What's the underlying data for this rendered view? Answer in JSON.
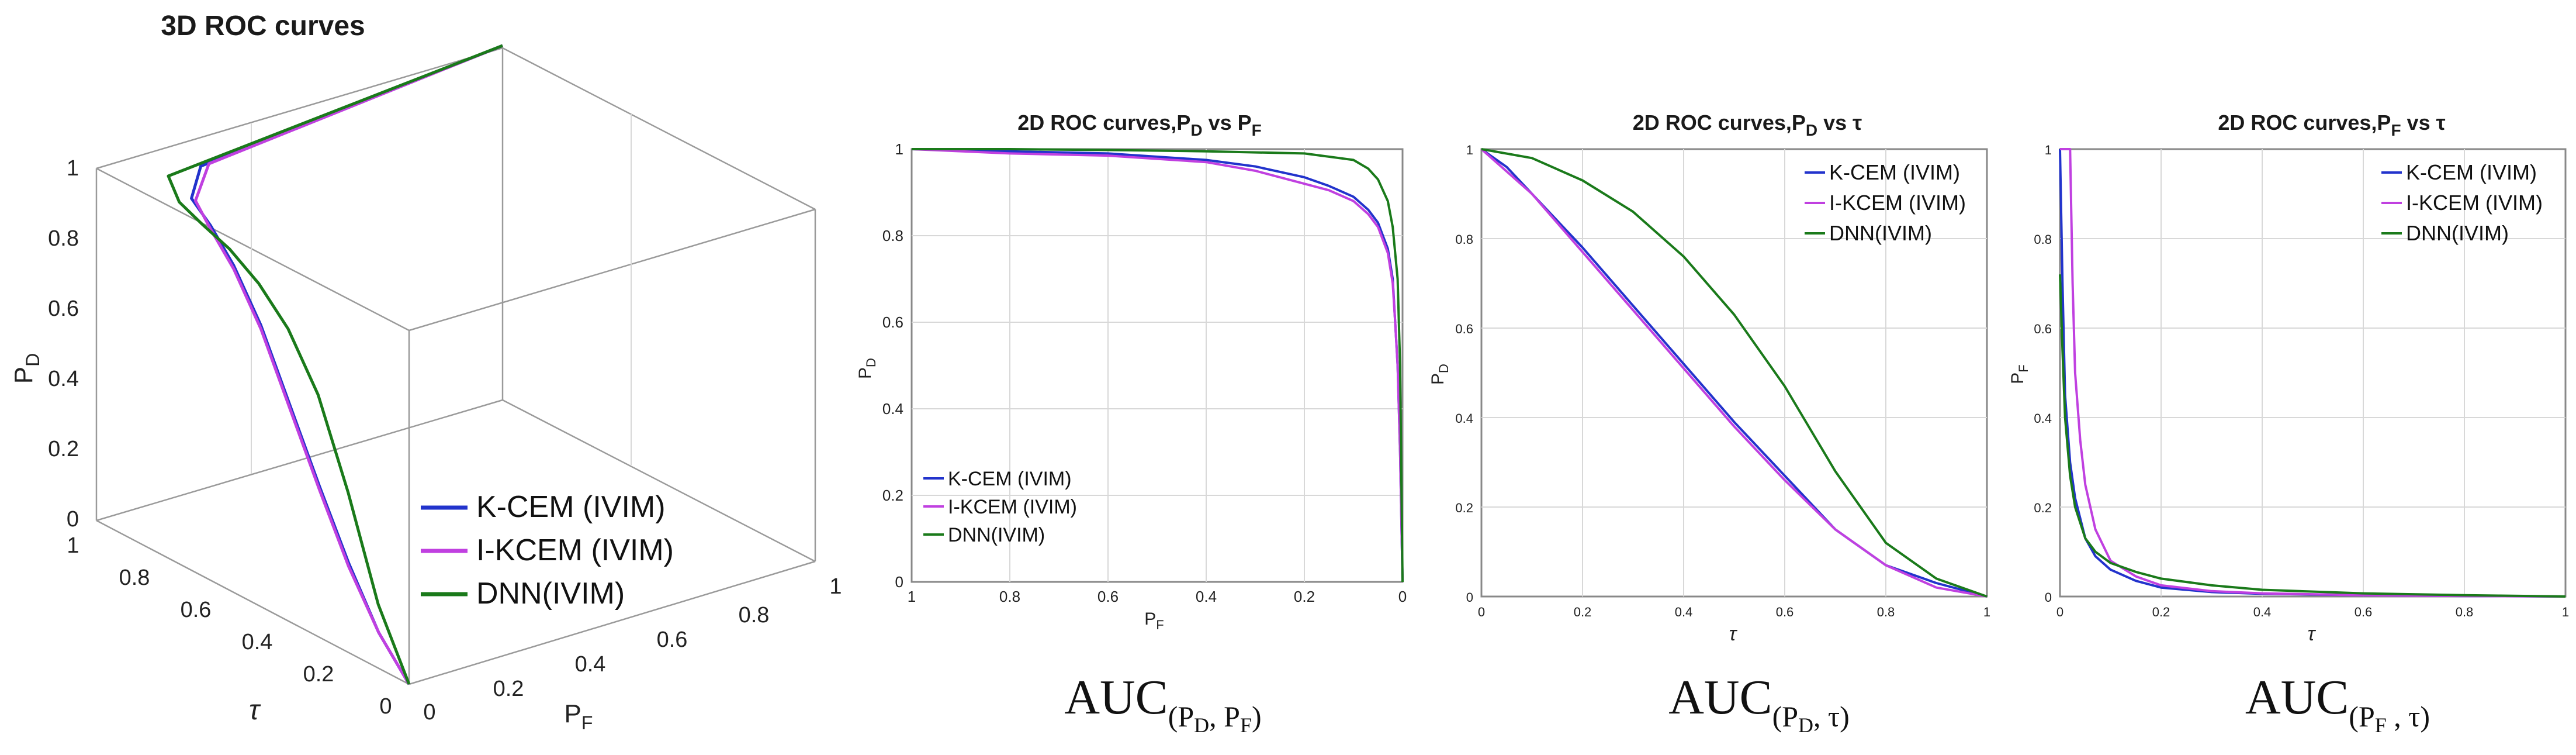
{
  "colors": {
    "kcem": "#2233cc",
    "ikcem": "#c040e0",
    "dnn": "#1a7a1a"
  },
  "series_names": [
    "K-CEM (IVIM)",
    "I-KCEM (IVIM)",
    "DNN(IVIM)"
  ],
  "auc_labels": [
    {
      "main": "AUC",
      "sub": "(P",
      "sub1": "D",
      "mid": ", P",
      "sub2": "F",
      "end": ")"
    },
    {
      "main": "AUC",
      "sub": "(P",
      "sub1": "D",
      "mid": ", τ",
      "sub2": "",
      "end": ")"
    },
    {
      "main": "AUC",
      "sub": "(P",
      "sub1": "F",
      "mid": " , τ",
      "sub2": "",
      "end": ")"
    }
  ],
  "chart_data": [
    {
      "type": "line",
      "title": "3D ROC curves",
      "zlabel": "P",
      "zlabel_sub": "D",
      "xlabel": "P",
      "xlabel_sub": "F",
      "ylabel": "τ",
      "zlim": [
        0,
        1
      ],
      "xlim": [
        0,
        1
      ],
      "ylim": [
        0,
        1
      ],
      "z_ticks": [
        "0",
        "0.2",
        "0.4",
        "0.6",
        "0.8",
        "1"
      ],
      "x_ticks": [
        "0",
        "0.2",
        "0.4",
        "0.6",
        "0.8",
        "1"
      ],
      "y_ticks": [
        "0",
        "0.2",
        "0.4",
        "0.6",
        "0.8",
        "1"
      ],
      "legend": "lower-right",
      "series": [
        {
          "name": "K-CEM (IVIM)",
          "tau": [
            1.0,
            0.9,
            0.8,
            0.7,
            0.6,
            0.5,
            0.4,
            0.3,
            0.2,
            0.1,
            0.0
          ],
          "pf": [
            1.0,
            0.18,
            0.08,
            0.05,
            0.03,
            0.02,
            0.015,
            0.01,
            0.005,
            0.002,
            0.0
          ],
          "pd": [
            1.0,
            0.99,
            0.98,
            0.96,
            0.9,
            0.78,
            0.6,
            0.42,
            0.25,
            0.1,
            0.0
          ]
        },
        {
          "name": "I-KCEM (IVIM)",
          "tau": [
            1.0,
            0.9,
            0.8,
            0.7,
            0.6,
            0.5,
            0.4,
            0.3,
            0.2,
            0.1,
            0.0
          ],
          "pf": [
            1.0,
            0.2,
            0.09,
            0.05,
            0.03,
            0.02,
            0.015,
            0.01,
            0.005,
            0.002,
            0.0
          ],
          "pd": [
            1.0,
            0.99,
            0.97,
            0.95,
            0.89,
            0.77,
            0.59,
            0.41,
            0.24,
            0.1,
            0.0
          ]
        },
        {
          "name": "DNN(IVIM)",
          "tau": [
            1.0,
            0.9,
            0.8,
            0.7,
            0.6,
            0.5,
            0.4,
            0.3,
            0.2,
            0.1,
            0.0
          ],
          "pf": [
            1.0,
            0.1,
            0.05,
            0.03,
            0.02,
            0.015,
            0.01,
            0.007,
            0.004,
            0.001,
            0.0
          ],
          "pd": [
            1.0,
            0.99,
            0.98,
            0.97,
            0.95,
            0.9,
            0.82,
            0.68,
            0.45,
            0.18,
            0.0
          ]
        }
      ]
    },
    {
      "type": "line",
      "title": "2D ROC curves,P",
      "title_sub1": "D",
      "title_mid": " vs P",
      "title_sub2": "F",
      "xlabel": "P",
      "xlabel_sub": "F",
      "ylabel": "P",
      "ylabel_sub": "D",
      "xlim": [
        1,
        0
      ],
      "ylim": [
        0,
        1
      ],
      "x_ticks": [
        "1",
        "0.8",
        "0.6",
        "0.4",
        "0.2",
        "0"
      ],
      "y_ticks": [
        "0",
        "0.2",
        "0.4",
        "0.6",
        "0.8",
        "1"
      ],
      "grid": true,
      "legend": "lower-left",
      "series": [
        {
          "name": "K-CEM (IVIM)",
          "x": [
            1.0,
            0.8,
            0.6,
            0.4,
            0.3,
            0.2,
            0.15,
            0.1,
            0.07,
            0.05,
            0.03,
            0.02,
            0.015,
            0.01,
            0.005,
            0.002,
            0.0
          ],
          "y": [
            1.0,
            0.995,
            0.99,
            0.975,
            0.96,
            0.935,
            0.915,
            0.89,
            0.86,
            0.83,
            0.77,
            0.7,
            0.6,
            0.5,
            0.3,
            0.12,
            0.0
          ]
        },
        {
          "name": "I-KCEM (IVIM)",
          "x": [
            1.0,
            0.8,
            0.6,
            0.4,
            0.3,
            0.2,
            0.15,
            0.1,
            0.07,
            0.05,
            0.03,
            0.02,
            0.015,
            0.01,
            0.005,
            0.002,
            0.0
          ],
          "y": [
            1.0,
            0.99,
            0.985,
            0.97,
            0.95,
            0.92,
            0.905,
            0.88,
            0.85,
            0.82,
            0.76,
            0.69,
            0.6,
            0.5,
            0.3,
            0.12,
            0.0
          ]
        },
        {
          "name": "DNN(IVIM)",
          "x": [
            1.0,
            0.8,
            0.6,
            0.4,
            0.2,
            0.1,
            0.07,
            0.05,
            0.03,
            0.02,
            0.01,
            0.005,
            0.002,
            0.0
          ],
          "y": [
            1.0,
            1.0,
            0.998,
            0.995,
            0.99,
            0.975,
            0.955,
            0.93,
            0.88,
            0.82,
            0.7,
            0.5,
            0.2,
            0.0
          ]
        }
      ]
    },
    {
      "type": "line",
      "title": "2D ROC curves,P",
      "title_sub1": "D",
      "title_mid": " vs τ",
      "title_sub2": "",
      "xlabel": "τ",
      "xlabel_sub": "",
      "ylabel": "P",
      "ylabel_sub": "D",
      "xlim": [
        0,
        1
      ],
      "ylim": [
        0,
        1
      ],
      "x_ticks": [
        "0",
        "0.2",
        "0.4",
        "0.6",
        "0.8",
        "1"
      ],
      "y_ticks": [
        "0",
        "0.2",
        "0.4",
        "0.6",
        "0.8",
        "1"
      ],
      "grid": true,
      "legend": "top-right",
      "series": [
        {
          "name": "K-CEM (IVIM)",
          "x": [
            0.0,
            0.05,
            0.1,
            0.2,
            0.3,
            0.4,
            0.5,
            0.6,
            0.7,
            0.8,
            0.9,
            1.0
          ],
          "y": [
            1.0,
            0.96,
            0.9,
            0.78,
            0.65,
            0.52,
            0.39,
            0.27,
            0.15,
            0.07,
            0.03,
            0.0
          ]
        },
        {
          "name": "I-KCEM (IVIM)",
          "x": [
            0.0,
            0.05,
            0.1,
            0.2,
            0.3,
            0.4,
            0.5,
            0.6,
            0.7,
            0.8,
            0.9,
            1.0
          ],
          "y": [
            1.0,
            0.95,
            0.9,
            0.77,
            0.64,
            0.51,
            0.38,
            0.26,
            0.15,
            0.07,
            0.02,
            0.0
          ]
        },
        {
          "name": "DNN(IVIM)",
          "x": [
            0.0,
            0.05,
            0.1,
            0.2,
            0.3,
            0.4,
            0.5,
            0.6,
            0.7,
            0.8,
            0.9,
            1.0
          ],
          "y": [
            1.0,
            0.99,
            0.98,
            0.93,
            0.86,
            0.76,
            0.63,
            0.47,
            0.28,
            0.12,
            0.04,
            0.0
          ]
        }
      ]
    },
    {
      "type": "line",
      "title": "2D ROC curves,P",
      "title_sub1": "F",
      "title_mid": " vs τ",
      "title_sub2": "",
      "xlabel": "τ",
      "xlabel_sub": "",
      "ylabel": "P",
      "ylabel_sub": "F",
      "xlim": [
        0,
        1
      ],
      "ylim": [
        0,
        1
      ],
      "x_ticks": [
        "0",
        "0.2",
        "0.4",
        "0.6",
        "0.8",
        "1"
      ],
      "y_ticks": [
        "0",
        "0.2",
        "0.4",
        "0.6",
        "0.8",
        "1"
      ],
      "grid": true,
      "legend": "top-right",
      "series": [
        {
          "name": "K-CEM (IVIM)",
          "x": [
            0.0,
            0.005,
            0.01,
            0.02,
            0.03,
            0.05,
            0.07,
            0.1,
            0.15,
            0.2,
            0.3,
            0.4,
            0.6,
            0.8,
            1.0
          ],
          "y": [
            1.0,
            0.7,
            0.45,
            0.3,
            0.22,
            0.13,
            0.09,
            0.06,
            0.035,
            0.02,
            0.01,
            0.006,
            0.003,
            0.001,
            0.0
          ]
        },
        {
          "name": "I-KCEM (IVIM)",
          "x": [
            0.0,
            0.02,
            0.025,
            0.03,
            0.04,
            0.05,
            0.07,
            0.1,
            0.15,
            0.2,
            0.3,
            0.4,
            0.6,
            0.8,
            1.0
          ],
          "y": [
            1.0,
            1.0,
            0.7,
            0.5,
            0.35,
            0.25,
            0.15,
            0.08,
            0.045,
            0.025,
            0.012,
            0.007,
            0.003,
            0.001,
            0.0
          ]
        },
        {
          "name": "DNN(IVIM)",
          "x": [
            0.0,
            0.005,
            0.01,
            0.02,
            0.03,
            0.05,
            0.07,
            0.1,
            0.15,
            0.2,
            0.3,
            0.4,
            0.6,
            0.8,
            1.0
          ],
          "y": [
            0.72,
            0.55,
            0.4,
            0.27,
            0.2,
            0.13,
            0.1,
            0.075,
            0.055,
            0.04,
            0.025,
            0.015,
            0.007,
            0.003,
            0.0
          ]
        }
      ]
    }
  ]
}
